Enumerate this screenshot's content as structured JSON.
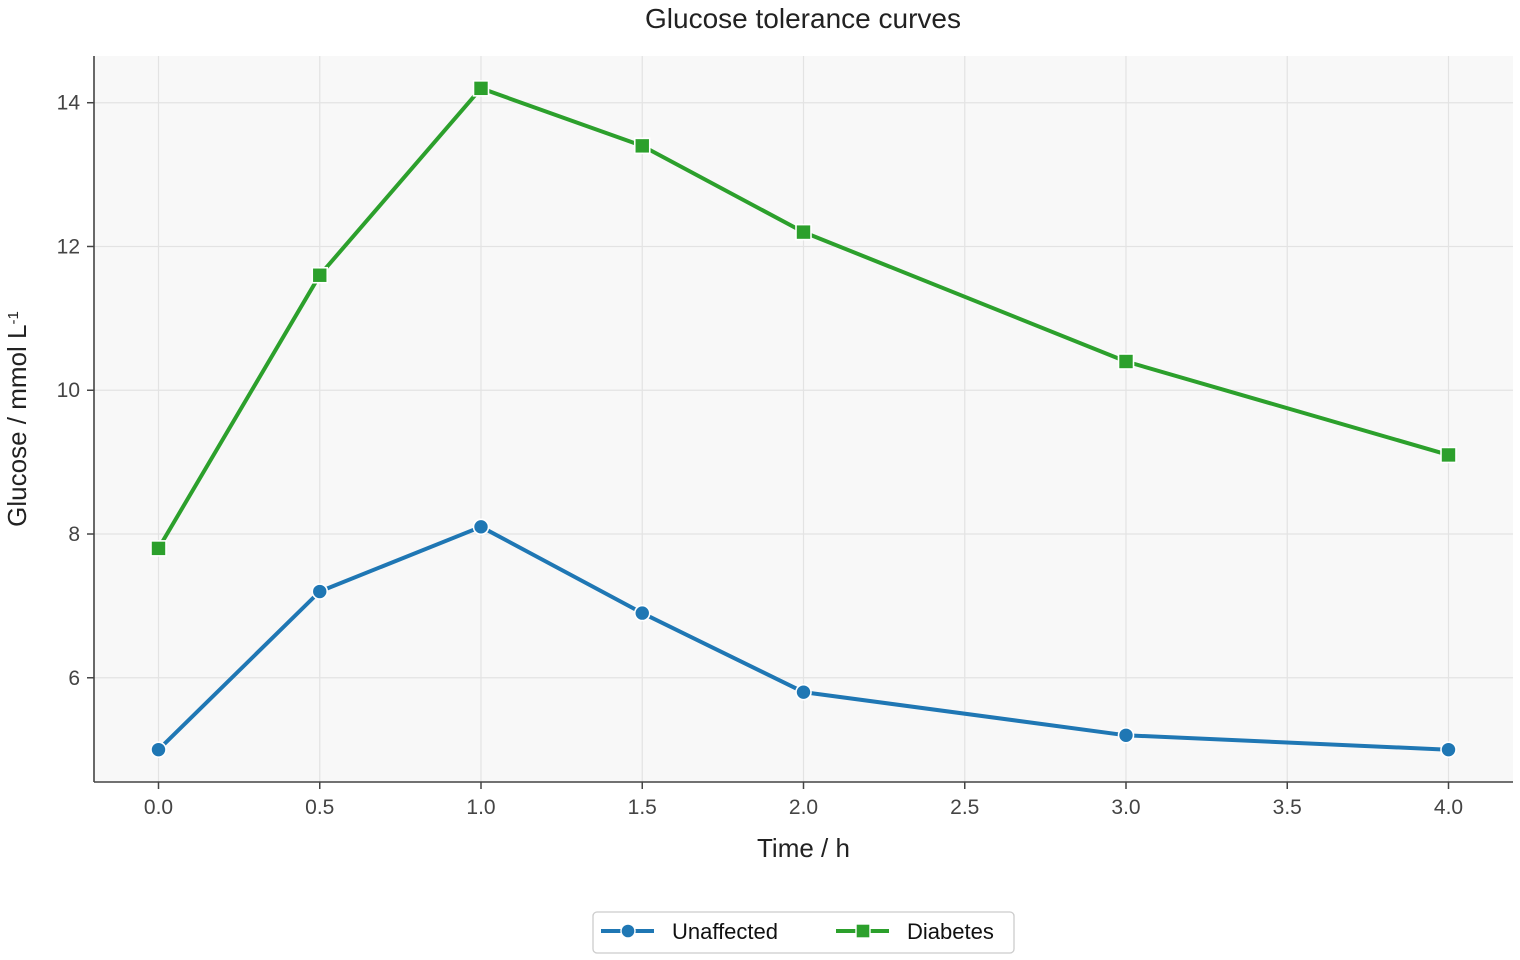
{
  "chart_data": {
    "type": "line",
    "title": "Glucose tolerance curves",
    "xlabel": "Time / h",
    "ylabel": "Glucose / mmol L",
    "ylabel_superscript": "-1",
    "x_ticks": [
      "0.0",
      "0.5",
      "1.0",
      "1.5",
      "2.0",
      "2.5",
      "3.0",
      "3.5",
      "4.0"
    ],
    "y_ticks": [
      "6",
      "8",
      "10",
      "12",
      "14"
    ],
    "xlim": [
      -0.2,
      4.2
    ],
    "ylim": [
      4.55,
      14.65
    ],
    "grid": true,
    "legend_position": "bottom-center",
    "x": [
      0.0,
      0.5,
      1.0,
      1.5,
      2.0,
      3.0,
      4.0
    ],
    "series": [
      {
        "name": "Unaffected",
        "values": [
          5.0,
          7.2,
          8.1,
          6.9,
          5.8,
          5.2,
          5.0
        ],
        "color": "#1f77b4",
        "marker": "circle"
      },
      {
        "name": "Diabetes",
        "values": [
          7.8,
          11.6,
          14.2,
          13.4,
          12.2,
          10.4,
          9.1
        ],
        "color": "#2ca02c",
        "marker": "square"
      }
    ]
  }
}
